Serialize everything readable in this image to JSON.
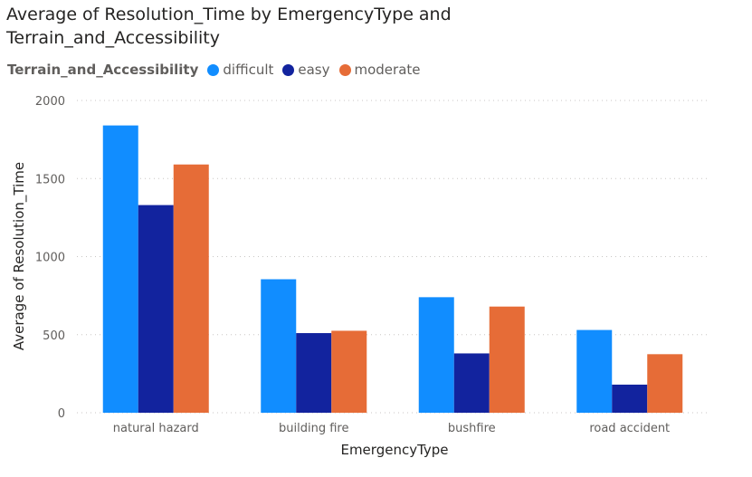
{
  "chart_data": {
    "type": "bar",
    "title": "Average of Resolution_Time by EmergencyType and Terrain_and_Accessibility",
    "xlabel": "EmergencyType",
    "ylabel": "Average of Resolution_Time",
    "legend_title": "Terrain_and_Accessibility",
    "legend_position": "top-left",
    "grid": true,
    "ylim": [
      0,
      2000
    ],
    "yticks": [
      0,
      500,
      1000,
      1500,
      2000
    ],
    "categories": [
      "natural hazard",
      "building fire",
      "bushfire",
      "road accident"
    ],
    "series": [
      {
        "name": "difficult",
        "color": "#118dff",
        "values": [
          1840,
          855,
          740,
          530
        ]
      },
      {
        "name": "easy",
        "color": "#12239e",
        "values": [
          1330,
          510,
          380,
          180
        ]
      },
      {
        "name": "moderate",
        "color": "#e66c37",
        "values": [
          1590,
          525,
          680,
          375
        ]
      }
    ]
  }
}
